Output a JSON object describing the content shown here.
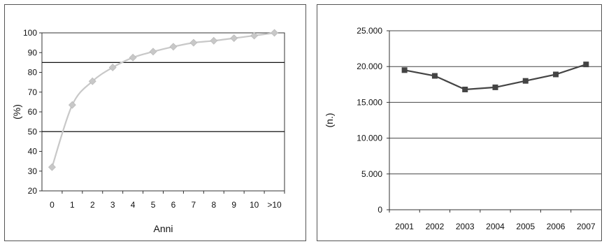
{
  "chart_data": [
    {
      "type": "line",
      "ylabel": "(%)",
      "xlabel": "Anni",
      "ylim": [
        20,
        100
      ],
      "y_ticks": [
        "20",
        "30",
        "40",
        "50",
        "60",
        "70",
        "80",
        "90",
        "100"
      ],
      "categories": [
        "0",
        "1",
        "2",
        "3",
        "4",
        "5",
        "6",
        "7",
        "8",
        "9",
        "10",
        ">10"
      ],
      "series": [
        {
          "values": [
            32,
            63.5,
            75.5,
            82.5,
            87.5,
            90.5,
            93,
            95,
            96,
            97.3,
            98.6,
            100
          ],
          "color": "#c8c8c8",
          "marker": "diamond"
        }
      ],
      "reference_lines": [
        85,
        50
      ],
      "grid": false
    },
    {
      "type": "line",
      "ylabel": "(n.)",
      "xlabel": "",
      "ylim": [
        0,
        25000
      ],
      "y_ticks": [
        "0",
        "5.000",
        "10.000",
        "15.000",
        "20.000",
        "25.000"
      ],
      "categories": [
        "2001",
        "2002",
        "2003",
        "2004",
        "2005",
        "2006",
        "2007"
      ],
      "series": [
        {
          "values": [
            19500,
            18700,
            16800,
            17100,
            18000,
            18900,
            20300
          ],
          "color": "#444444",
          "marker": "square"
        }
      ],
      "grid": true
    }
  ]
}
